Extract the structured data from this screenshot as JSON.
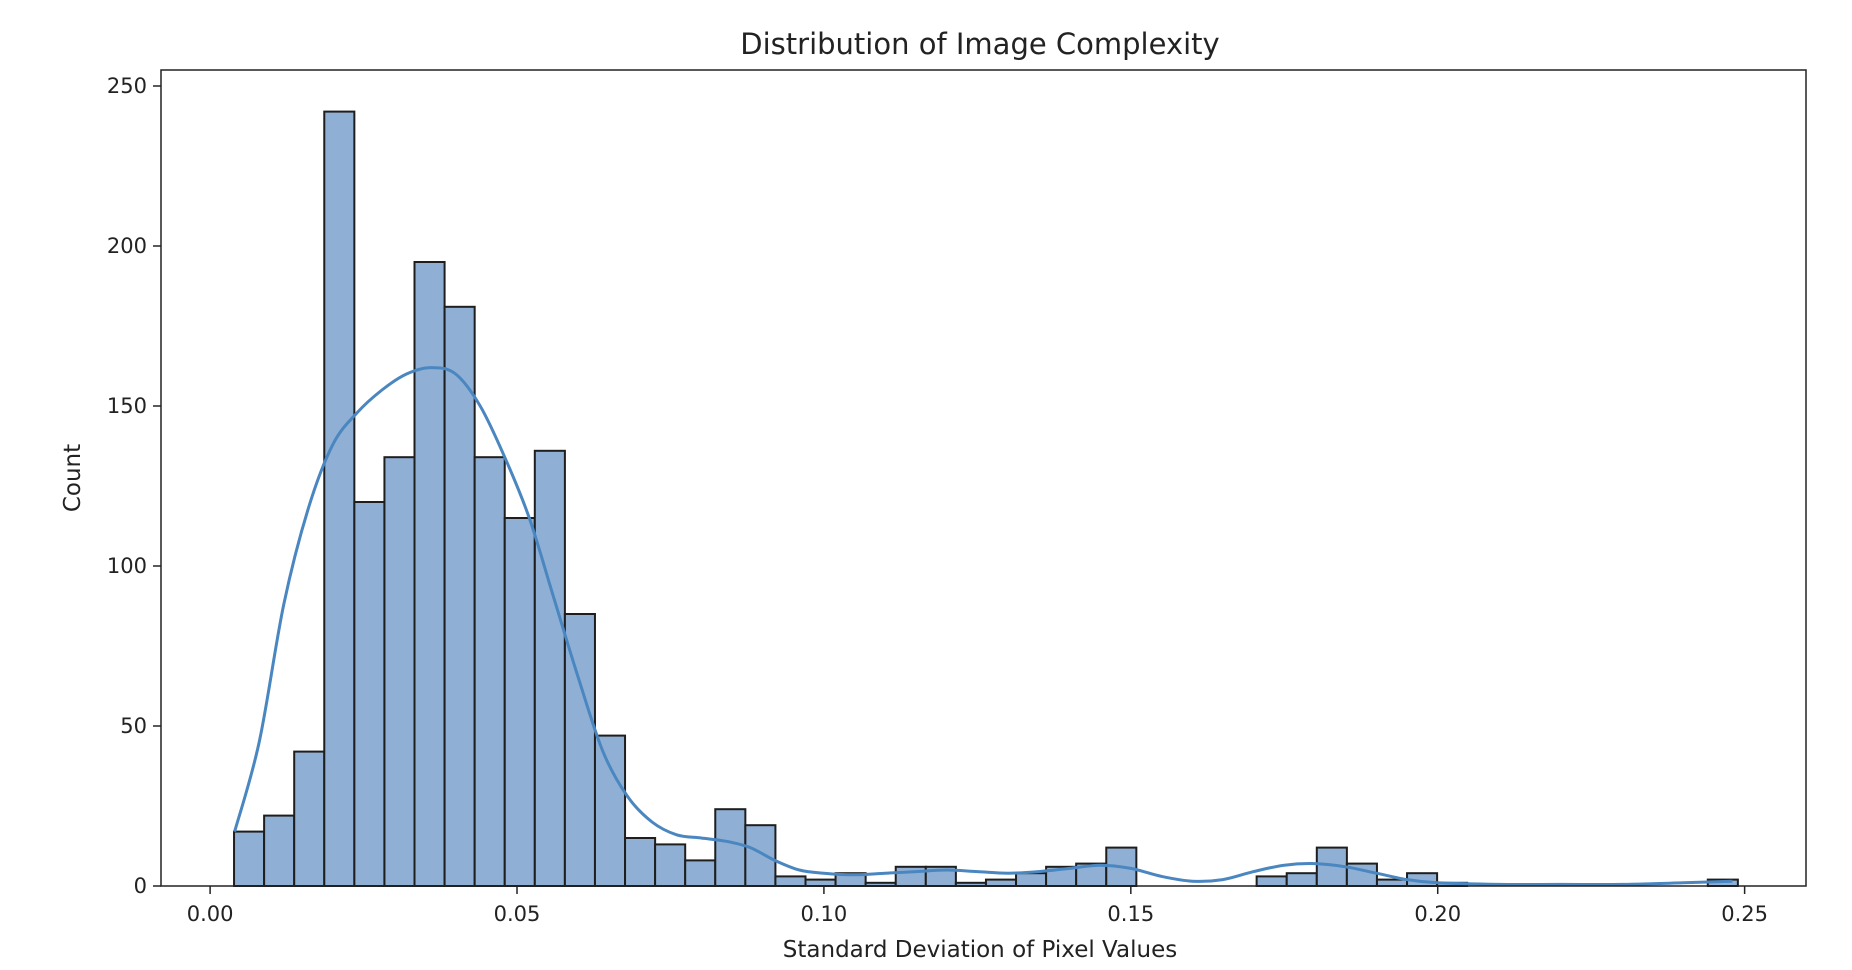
{
  "chart_data": {
    "type": "bar",
    "subtype": "histogram-with-kde",
    "title": "Distribution of Image Complexity",
    "xlabel": "Standard Deviation of Pixel Values",
    "ylabel": "Count",
    "xlim": [
      -0.008,
      0.26
    ],
    "ylim": [
      0,
      255
    ],
    "xticks": [
      "0.00",
      "0.05",
      "0.10",
      "0.15",
      "0.20",
      "0.25"
    ],
    "xtick_values": [
      0.0,
      0.05,
      0.1,
      0.15,
      0.2,
      0.25
    ],
    "yticks": [
      "0",
      "50",
      "100",
      "150",
      "200",
      "250"
    ],
    "ytick_values": [
      0,
      50,
      100,
      150,
      200,
      250
    ],
    "bin_edges": [
      0.0039,
      0.0088,
      0.0137,
      0.0186,
      0.0235,
      0.0284,
      0.0333,
      0.0382,
      0.0431,
      0.048,
      0.0529,
      0.0578,
      0.0627,
      0.0676,
      0.0725,
      0.0774,
      0.0823,
      0.0872,
      0.0921,
      0.097,
      0.1019,
      0.1068,
      0.1117,
      0.1166,
      0.1215,
      0.1264,
      0.1313,
      0.1362,
      0.1411,
      0.146,
      0.1509,
      0.1558,
      0.1607,
      0.1656,
      0.1705,
      0.1754,
      0.1803,
      0.1852,
      0.1901,
      0.195,
      0.1999,
      0.2048,
      0.2097,
      0.2146,
      0.2195,
      0.2244,
      0.2293,
      0.2342,
      0.2391,
      0.244,
      0.2489
    ],
    "counts": [
      17,
      22,
      42,
      242,
      120,
      134,
      195,
      181,
      134,
      115,
      136,
      85,
      47,
      15,
      13,
      8,
      24,
      19,
      3,
      2,
      4,
      1,
      6,
      6,
      1,
      2,
      4,
      6,
      7,
      12,
      0,
      0,
      0,
      0,
      3,
      4,
      12,
      7,
      2,
      4,
      1,
      0,
      0,
      0,
      0,
      0,
      0,
      0,
      0,
      2
    ],
    "kde": {
      "x": [
        0.004,
        0.008,
        0.012,
        0.016,
        0.02,
        0.024,
        0.028,
        0.032,
        0.036,
        0.04,
        0.044,
        0.048,
        0.052,
        0.056,
        0.06,
        0.064,
        0.068,
        0.072,
        0.076,
        0.08,
        0.084,
        0.088,
        0.092,
        0.096,
        0.1,
        0.105,
        0.11,
        0.115,
        0.12,
        0.125,
        0.13,
        0.135,
        0.14,
        0.145,
        0.15,
        0.155,
        0.16,
        0.165,
        0.17,
        0.175,
        0.18,
        0.185,
        0.19,
        0.195,
        0.2,
        0.21,
        0.22,
        0.23,
        0.24,
        0.248
      ],
      "y": [
        17,
        45,
        88,
        118,
        138,
        148,
        155,
        160,
        162,
        160,
        150,
        134,
        115,
        90,
        65,
        42,
        28,
        20,
        16,
        15,
        14,
        12,
        8,
        5,
        4,
        3.5,
        4,
        4.5,
        5,
        4.5,
        4,
        4.5,
        5.5,
        6.5,
        5.5,
        3,
        1.5,
        2,
        4.5,
        6.5,
        7,
        6,
        4,
        2,
        1,
        0.5,
        0.5,
        0.5,
        1,
        1.5
      ]
    },
    "colors": {
      "bar_fill": "#8fb0d4",
      "bar_edge": "#1e1e1e",
      "kde_line": "#4a86c0"
    },
    "grid": false,
    "legend": "none"
  }
}
